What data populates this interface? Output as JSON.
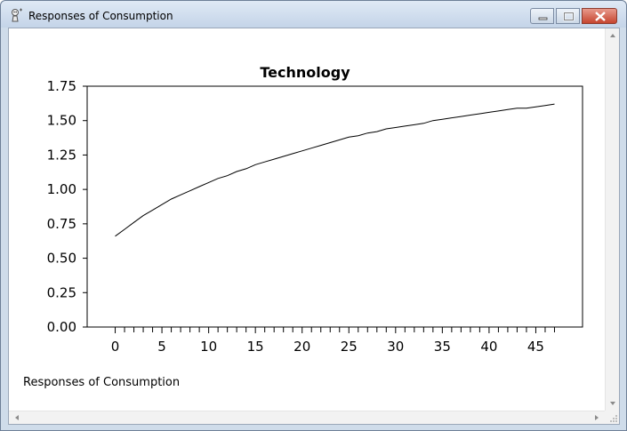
{
  "window": {
    "title": "Responses of Consumption",
    "icon": "app-icon"
  },
  "caption": "Responses of Consumption",
  "chart_data": {
    "type": "line",
    "title": "Technology",
    "xlabel": "",
    "ylabel": "",
    "xlim": [
      -3,
      50
    ],
    "ylim": [
      0,
      1.75
    ],
    "x_ticks": [
      0,
      5,
      10,
      15,
      20,
      25,
      30,
      35,
      40,
      45
    ],
    "y_ticks": [
      "0.00",
      "0.25",
      "0.50",
      "0.75",
      "1.00",
      "1.25",
      "1.50",
      "1.75"
    ],
    "grid": false,
    "series": [
      {
        "x": [
          0,
          1,
          2,
          3,
          4,
          5,
          6,
          7,
          8,
          9,
          10,
          11,
          12,
          13,
          14,
          15,
          16,
          17,
          18,
          19,
          20,
          21,
          22,
          23,
          24,
          25,
          26,
          27,
          28,
          29,
          30,
          31,
          32,
          33,
          34,
          35,
          36,
          37,
          38,
          39,
          40,
          41,
          42,
          43,
          44,
          45,
          46,
          47
        ],
        "values": [
          0.66,
          0.71,
          0.76,
          0.81,
          0.85,
          0.89,
          0.93,
          0.96,
          0.99,
          1.02,
          1.05,
          1.08,
          1.1,
          1.13,
          1.15,
          1.18,
          1.2,
          1.22,
          1.24,
          1.26,
          1.28,
          1.3,
          1.32,
          1.34,
          1.36,
          1.38,
          1.39,
          1.41,
          1.42,
          1.44,
          1.45,
          1.46,
          1.47,
          1.48,
          1.5,
          1.51,
          1.52,
          1.53,
          1.54,
          1.55,
          1.56,
          1.57,
          1.58,
          1.59,
          1.59,
          1.6,
          1.61,
          1.62
        ]
      }
    ]
  }
}
